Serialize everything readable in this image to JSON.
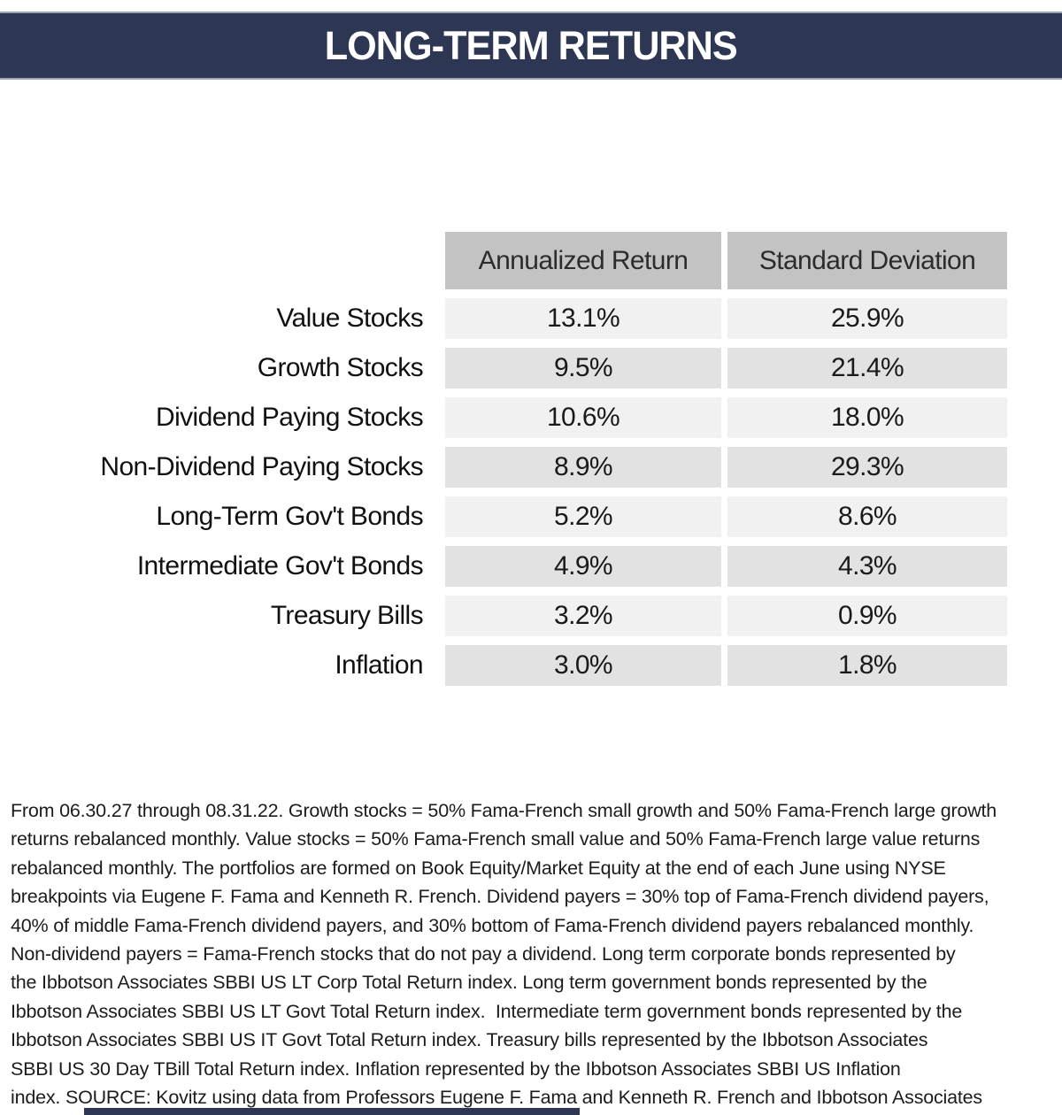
{
  "header": {
    "title": "LONG-TERM RETURNS"
  },
  "table": {
    "columns": [
      "Annualized Return",
      "Standard Deviation"
    ],
    "rows": [
      {
        "label": "Value Stocks",
        "annualized": "13.1%",
        "stddev": "25.9%"
      },
      {
        "label": "Growth Stocks",
        "annualized": "9.5%",
        "stddev": "21.4%"
      },
      {
        "label": "Dividend Paying Stocks",
        "annualized": "10.6%",
        "stddev": "18.0%"
      },
      {
        "label": "Non-Dividend Paying Stocks",
        "annualized": "8.9%",
        "stddev": "29.3%"
      },
      {
        "label": "Long-Term Gov't Bonds",
        "annualized": "5.2%",
        "stddev": "8.6%"
      },
      {
        "label": "Intermediate Gov't Bonds",
        "annualized": "4.9%",
        "stddev": "4.3%"
      },
      {
        "label": "Treasury Bills",
        "annualized": "3.2%",
        "stddev": "0.9%"
      },
      {
        "label": "Inflation",
        "annualized": "3.0%",
        "stddev": "1.8%"
      }
    ]
  },
  "footnote": {
    "lines": [
      "From 06.30.27 through 08.31.22. Growth stocks = 50% Fama-French small growth and 50% Fama-French large growth",
      "returns rebalanced monthly. Value stocks = 50% Fama-French small value and 50% Fama-French large value returns",
      "rebalanced monthly. The portfolios are formed on Book Equity/Market Equity at the end of each June using NYSE",
      "breakpoints via Eugene F. Fama and Kenneth R. French. Dividend payers = 30% top of Fama-French dividend payers,",
      "40% of middle Fama-French dividend payers, and 30% bottom of Fama-French dividend payers rebalanced monthly.",
      "Non-dividend payers = Fama-French stocks that do not pay a dividend. Long term corporate bonds represented by",
      "the Ibbotson Associates SBBI US LT Corp Total Return index. Long term government bonds represented by the",
      "Ibbotson Associates SBBI US LT Govt Total Return index.  Intermediate term government bonds represented by the",
      "Ibbotson Associates SBBI US IT Govt Total Return index. Treasury bills represented by the Ibbotson Associates",
      "SBBI US 30 Day TBill Total Return index. Inflation represented by the Ibbotson Associates SBBI US Inflation",
      "index. SOURCE: Kovitz using data from Professors Eugene F. Fama and Kenneth R. French and Ibbotson Associates"
    ]
  },
  "colors": {
    "title_bar_bg": "#2d3754",
    "title_bar_border": "#99a1b2",
    "title_text": "#ffffff",
    "table_header_bg": "#c3c3c3",
    "row_light_bg": "#f1f1f1",
    "row_dark_bg": "#e2e2e2",
    "body_text": "#1a1a1a"
  },
  "chart_data": {
    "type": "table",
    "title": "LONG-TERM RETURNS",
    "categories": [
      "Value Stocks",
      "Growth Stocks",
      "Dividend Paying Stocks",
      "Non-Dividend Paying Stocks",
      "Long-Term Gov't Bonds",
      "Intermediate Gov't Bonds",
      "Treasury Bills",
      "Inflation"
    ],
    "series": [
      {
        "name": "Annualized Return",
        "unit": "%",
        "values": [
          13.1,
          9.5,
          10.6,
          8.9,
          5.2,
          4.9,
          3.2,
          3.0
        ]
      },
      {
        "name": "Standard Deviation",
        "unit": "%",
        "values": [
          25.9,
          21.4,
          18.0,
          29.3,
          8.6,
          4.3,
          0.9,
          1.8
        ]
      }
    ],
    "source_note": "Kovitz using data from Professors Eugene F. Fama and Kenneth R. French and Ibbotson Associates",
    "period": "06.30.27 through 08.31.22"
  }
}
